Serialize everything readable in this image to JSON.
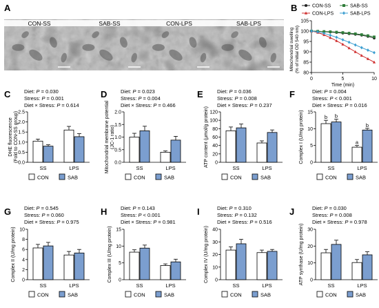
{
  "colors": {
    "con": "#ffffff",
    "sab": "#7b9ecf",
    "axis": "#000000"
  },
  "panel_a": {
    "letter": "A",
    "micrographs": [
      {
        "label": "CON-SS"
      },
      {
        "label": "SAB-SS"
      },
      {
        "label": "CON-LPS"
      },
      {
        "label": "SAB-LPS"
      }
    ]
  },
  "chart_data": [
    {
      "panel": "B",
      "type": "line",
      "xlabel": "Time (min)",
      "ylabel": "Mitochondrial swelling (% of initial OD 540 nm)",
      "xlim": [
        0,
        10
      ],
      "ylim": [
        80,
        105
      ],
      "xticks": [
        "0",
        "5",
        "10"
      ],
      "yticks": [
        "80",
        "85",
        "90",
        "95",
        "100",
        "105"
      ],
      "legend": [
        "CON-SS",
        "SAB-SS",
        "CON-LPS",
        "SAB-LPS"
      ],
      "series": [
        {
          "name": "CON-SS",
          "color": "#222222",
          "marker": "circle",
          "x": [
            0,
            1,
            2,
            3,
            4,
            5,
            6,
            7,
            8,
            9,
            10
          ],
          "y": [
            100,
            99.9,
            99.7,
            99.5,
            99.3,
            99.0,
            98.7,
            98.4,
            98.0,
            97.4,
            96.6
          ]
        },
        {
          "name": "SAB-SS",
          "color": "#2f7d3a",
          "marker": "square",
          "x": [
            0,
            1,
            2,
            3,
            4,
            5,
            6,
            7,
            8,
            9,
            10
          ],
          "y": [
            100,
            99.9,
            99.8,
            99.7,
            99.5,
            99.3,
            99.0,
            98.7,
            98.3,
            97.8,
            97.2
          ]
        },
        {
          "name": "CON-LPS",
          "color": "#d03030",
          "marker": "triangle",
          "x": [
            0,
            1,
            2,
            3,
            4,
            5,
            6,
            7,
            8,
            9,
            10
          ],
          "y": [
            100,
            99.3,
            98.2,
            96.8,
            95.3,
            93.6,
            91.8,
            90.0,
            88.2,
            86.6,
            85.0
          ]
        },
        {
          "name": "SAB-LPS",
          "color": "#3d9fd1",
          "marker": "diamond",
          "x": [
            0,
            1,
            2,
            3,
            4,
            5,
            6,
            7,
            8,
            9,
            10
          ],
          "y": [
            100,
            99.6,
            98.9,
            98.0,
            97.0,
            95.8,
            94.6,
            93.3,
            92.0,
            90.8,
            89.6
          ]
        }
      ]
    },
    {
      "panel": "C",
      "type": "bar",
      "ylabel": "DHE fluorescence (Fold to CON-SS group)",
      "ylim": [
        0,
        2.5
      ],
      "yticks": [
        "0.0",
        "0.5",
        "1.0",
        "1.5",
        "2.0",
        "2.5"
      ],
      "categories": [
        "SS",
        "LPS"
      ],
      "stats": [
        "Diet: P = 0.030",
        "Stress: P = 0.001",
        "Diet × Stress: P = 0.614"
      ],
      "series": [
        {
          "name": "CON",
          "values": [
            1.05,
            1.6
          ],
          "errors": [
            0.1,
            0.18
          ]
        },
        {
          "name": "SAB",
          "values": [
            0.8,
            1.27
          ],
          "errors": [
            0.07,
            0.15
          ]
        }
      ],
      "letters": null
    },
    {
      "panel": "D",
      "type": "bar",
      "ylabel": "Mitochondrial membrane potential (JC-1 ratio)",
      "ylim": [
        0,
        2.0
      ],
      "yticks": [
        "0.0",
        "0.5",
        "1.0",
        "1.5",
        "2.0"
      ],
      "categories": [
        "SS",
        "LPS"
      ],
      "stats": [
        "Diet: P = 0.023",
        "Stress: P = 0.004",
        "Diet × Stress: P = 0.466"
      ],
      "series": [
        {
          "name": "CON",
          "values": [
            1.0,
            0.4
          ],
          "errors": [
            0.15,
            0.05
          ]
        },
        {
          "name": "SAB",
          "values": [
            1.25,
            0.88
          ],
          "errors": [
            0.18,
            0.15
          ]
        }
      ],
      "letters": null
    },
    {
      "panel": "E",
      "type": "bar",
      "ylabel": "ATP content (μmol/g protein)",
      "ylim": [
        0,
        120
      ],
      "yticks": [
        "0",
        "20",
        "40",
        "60",
        "80",
        "100",
        "120"
      ],
      "categories": [
        "SS",
        "LPS"
      ],
      "stats": [
        "Diet: P = 0.036",
        "Stress: P = 0.008",
        "Diet × Stress: P = 0.237"
      ],
      "series": [
        {
          "name": "CON",
          "values": [
            75,
            46
          ],
          "errors": [
            9,
            5
          ]
        },
        {
          "name": "SAB",
          "values": [
            82,
            71
          ],
          "errors": [
            9,
            6
          ]
        }
      ],
      "letters": null
    },
    {
      "panel": "F",
      "type": "bar",
      "ylabel": "Complex I (U/mg protein)",
      "ylim": [
        0,
        15
      ],
      "yticks": [
        "0",
        "5",
        "10",
        "15"
      ],
      "categories": [
        "SS",
        "LPS"
      ],
      "stats": [
        "Diet: P = 0.004",
        "Stress: P < 0.001",
        "Diet × Stress: P = 0.016"
      ],
      "series": [
        {
          "name": "CON",
          "values": [
            11.5,
            4.5
          ],
          "errors": [
            1.0,
            0.5
          ]
        },
        {
          "name": "SAB",
          "values": [
            12.0,
            9.6
          ],
          "errors": [
            0.8,
            0.5
          ]
        }
      ],
      "letters": [
        [
          "b",
          "a"
        ],
        [
          "b",
          "b"
        ]
      ]
    },
    {
      "panel": "G",
      "type": "bar",
      "ylabel": "Complex II (U/mg protein)",
      "ylim": [
        0,
        10
      ],
      "yticks": [
        "0",
        "2",
        "4",
        "6",
        "8",
        "10"
      ],
      "categories": [
        "SS",
        "LPS"
      ],
      "stats": [
        "Diet: P = 0.545",
        "Stress: P = 0.060",
        "Diet × Stress: P = 0.975"
      ],
      "series": [
        {
          "name": "CON",
          "values": [
            6.3,
            4.9
          ],
          "errors": [
            0.7,
            0.7
          ]
        },
        {
          "name": "SAB",
          "values": [
            6.7,
            5.3
          ],
          "errors": [
            0.7,
            0.7
          ]
        }
      ],
      "letters": null
    },
    {
      "panel": "H",
      "type": "bar",
      "ylabel": "Complex III (U/mg protein)",
      "ylim": [
        0,
        15
      ],
      "yticks": [
        "0",
        "5",
        "10",
        "15"
      ],
      "categories": [
        "SS",
        "LPS"
      ],
      "stats": [
        "Diet: P = 0.143",
        "Stress: P < 0.001",
        "Diet × Stress: P = 0.981"
      ],
      "series": [
        {
          "name": "CON",
          "values": [
            8.2,
            4.2
          ],
          "errors": [
            0.7,
            0.5
          ]
        },
        {
          "name": "SAB",
          "values": [
            9.4,
            5.3
          ],
          "errors": [
            0.9,
            0.8
          ]
        }
      ],
      "letters": null
    },
    {
      "panel": "I",
      "type": "bar",
      "ylabel": "Complex IV (U/mg protein)",
      "ylim": [
        0,
        40
      ],
      "yticks": [
        "0",
        "10",
        "20",
        "30",
        "40"
      ],
      "categories": [
        "SS",
        "LPS"
      ],
      "stats": [
        "Diet: P = 0.310",
        "Stress: P = 0.132",
        "Diet × Stress: P = 0.516"
      ],
      "series": [
        {
          "name": "CON",
          "values": [
            23.5,
            21.5
          ],
          "errors": [
            2.5,
            2.0
          ]
        },
        {
          "name": "SAB",
          "values": [
            28.5,
            22.5
          ],
          "errors": [
            3.5,
            1.5
          ]
        }
      ],
      "letters": null
    },
    {
      "panel": "J",
      "type": "bar",
      "ylabel": "ATP synthase (U/mg protein)",
      "ylim": [
        0,
        30
      ],
      "yticks": [
        "0",
        "10",
        "20",
        "30"
      ],
      "categories": [
        "SS",
        "LPS"
      ],
      "stats": [
        "Diet: P = 0.030",
        "Stress: P = 0.008",
        "Diet × Stress: P = 0.978"
      ],
      "series": [
        {
          "name": "CON",
          "values": [
            16.0,
            10.2
          ],
          "errors": [
            2.0,
            1.8
          ]
        },
        {
          "name": "SAB",
          "values": [
            21.0,
            14.8
          ],
          "errors": [
            2.5,
            1.8
          ]
        }
      ],
      "letters": null
    }
  ]
}
